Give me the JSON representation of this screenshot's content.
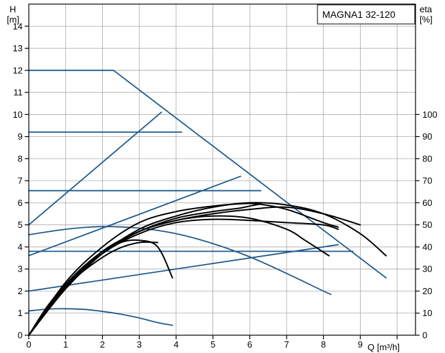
{
  "chart_data": {
    "type": "line",
    "model_label": "MAGNA1 32-120",
    "y_axis_left": {
      "label_line1": "H",
      "label_line2": "[m]",
      "range": [
        0,
        15
      ],
      "ticks": [
        "0",
        "1",
        "2",
        "3",
        "4",
        "5",
        "6",
        "7",
        "8",
        "9",
        "10",
        "11",
        "12",
        "13",
        "14"
      ]
    },
    "y_axis_right": {
      "label_line1": "eta",
      "label_line2": "[%]",
      "range": [
        0,
        150
      ],
      "ticks": [
        "0",
        "10",
        "20",
        "30",
        "40",
        "50",
        "60",
        "70",
        "80",
        "90",
        "100"
      ]
    },
    "x_axis": {
      "label": "Q [m³/h]",
      "range": [
        0,
        10.5
      ],
      "ticks": [
        "0",
        "1",
        "2",
        "3",
        "4",
        "5",
        "6",
        "7",
        "8",
        "9"
      ]
    },
    "grid": true,
    "colors": {
      "head_curves": "#1f5a8c",
      "efficiency_curves": "#000000",
      "grid": "#a8a8a8",
      "axis": "#000000"
    },
    "series": [
      {
        "kind": "head",
        "x": [
          0,
          2.3,
          9.7
        ],
        "y": [
          12,
          12,
          2.6
        ]
      },
      {
        "kind": "head",
        "x": [
          0,
          4.15
        ],
        "y": [
          9.2,
          9.2
        ]
      },
      {
        "kind": "head",
        "x": [
          0,
          6.3
        ],
        "y": [
          6.55,
          6.55
        ]
      },
      {
        "kind": "head",
        "x": [
          0,
          8.8
        ],
        "y": [
          3.8,
          3.8
        ]
      },
      {
        "kind": "head",
        "x": [
          0,
          3.6
        ],
        "y": [
          5.0,
          10.1
        ]
      },
      {
        "kind": "head",
        "x": [
          0,
          5.75
        ],
        "y": [
          3.6,
          7.2
        ]
      },
      {
        "kind": "head",
        "x": [
          0,
          8.4
        ],
        "y": [
          2.0,
          4.1
        ]
      },
      {
        "kind": "head",
        "x": [
          0,
          1,
          2,
          3,
          4,
          5,
          6,
          7,
          8,
          8.2
        ],
        "y": [
          4.55,
          4.8,
          4.92,
          4.85,
          4.6,
          4.15,
          3.55,
          2.8,
          2.0,
          1.85
        ]
      },
      {
        "kind": "head",
        "x": [
          0,
          0.5,
          1,
          1.5,
          2,
          2.5,
          3,
          3.5,
          3.9
        ],
        "y": [
          1.1,
          1.18,
          1.2,
          1.17,
          1.08,
          0.95,
          0.78,
          0.57,
          0.45
        ]
      },
      {
        "kind": "efficiency",
        "x": [
          0,
          0.5,
          1,
          1.5,
          2,
          2.5,
          3,
          3.5,
          3.9
        ],
        "y": [
          0,
          13,
          23,
          31,
          37,
          42,
          43,
          40,
          26
        ]
      },
      {
        "kind": "efficiency",
        "x": [
          0,
          0.6,
          1.2,
          1.8,
          2.4,
          3.0,
          3.5
        ],
        "y": [
          0,
          14,
          25,
          33,
          39,
          42,
          42
        ]
      },
      {
        "kind": "efficiency",
        "x": [
          0,
          1,
          2,
          3,
          4,
          5,
          6,
          7,
          7.5,
          8.15
        ],
        "y": [
          0,
          23,
          38,
          47,
          52,
          54,
          53,
          48,
          43,
          36
        ]
      },
      {
        "kind": "efficiency",
        "x": [
          0,
          1,
          2,
          3,
          4,
          5,
          6,
          7,
          8,
          8.4
        ],
        "y": [
          0,
          22,
          37,
          46,
          51,
          52.5,
          52,
          51,
          50,
          48
        ]
      },
      {
        "kind": "efficiency",
        "x": [
          0,
          1,
          2,
          3,
          4,
          5,
          5.7,
          6.2,
          7,
          8,
          8.4
        ],
        "y": [
          0,
          24,
          40,
          51,
          56,
          58.5,
          59.5,
          59.5,
          57,
          51,
          49
        ]
      },
      {
        "kind": "efficiency",
        "x": [
          0,
          1,
          2,
          3,
          4,
          5,
          6,
          7,
          8,
          9,
          9.7
        ],
        "y": [
          0,
          21,
          37,
          48,
          54,
          58,
          60,
          59,
          55,
          46,
          36
        ]
      },
      {
        "kind": "efficiency",
        "x": [
          0,
          1,
          2,
          3,
          4,
          5,
          5.7,
          6,
          6.3
        ],
        "y": [
          0,
          22,
          38,
          47,
          53,
          56,
          57.5,
          58.5,
          59.5
        ]
      },
      {
        "kind": "efficiency",
        "x": [
          0,
          1,
          2,
          3,
          4,
          5,
          6,
          7,
          8,
          9
        ],
        "y": [
          0,
          23,
          37,
          47,
          52,
          55,
          57,
          58,
          55,
          50
        ]
      }
    ]
  }
}
